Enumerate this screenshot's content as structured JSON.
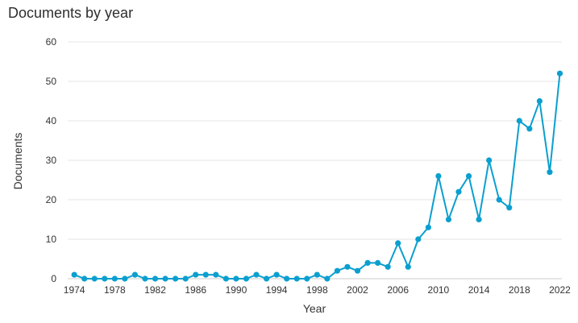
{
  "chart_data": {
    "type": "line",
    "title": "Documents by year",
    "xlabel": "Year",
    "ylabel": "Documents",
    "ylim": [
      0,
      60
    ],
    "yticks": [
      0,
      10,
      20,
      30,
      40,
      50,
      60
    ],
    "xticks": [
      1974,
      1978,
      1982,
      1986,
      1990,
      1994,
      1998,
      2002,
      2006,
      2010,
      2014,
      2018,
      2022
    ],
    "xlim": [
      1974,
      2022
    ],
    "grid": true,
    "colors": {
      "series": "#0b9fcf",
      "grid": "#e6e6e6"
    },
    "series": [
      {
        "x": [
          1974,
          1975,
          1976,
          1977,
          1978,
          1979,
          1980,
          1981,
          1982,
          1983,
          1984,
          1985,
          1986,
          1987,
          1988,
          1989,
          1990,
          1991,
          1992,
          1993,
          1994,
          1995,
          1996,
          1997,
          1998,
          1999,
          2000,
          2001,
          2002,
          2003,
          2004,
          2005,
          2006,
          2007,
          2008,
          2009,
          2010,
          2011,
          2012,
          2013,
          2014,
          2015,
          2016,
          2017,
          2018,
          2019,
          2020,
          2021,
          2022
        ],
        "values": [
          1,
          0,
          0,
          0,
          0,
          0,
          1,
          0,
          0,
          0,
          0,
          0,
          1,
          1,
          1,
          0,
          0,
          0,
          1,
          0,
          1,
          0,
          0,
          0,
          1,
          0,
          2,
          3,
          2,
          4,
          4,
          3,
          9,
          3,
          10,
          13,
          26,
          15,
          22,
          26,
          15,
          30,
          20,
          18,
          40,
          38,
          45,
          27,
          52
        ]
      }
    ]
  }
}
